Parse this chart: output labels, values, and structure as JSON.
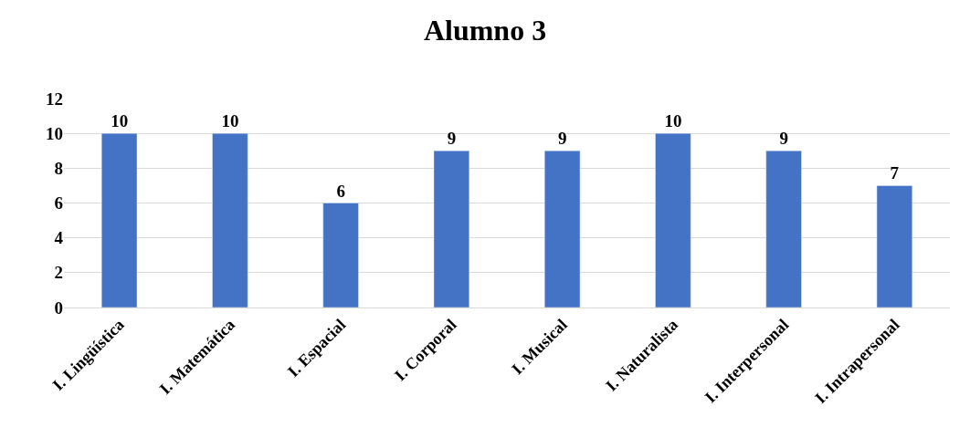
{
  "chart_data": {
    "type": "bar",
    "title": "Alumno 3",
    "categories": [
      "I. Lingüística",
      "I. Matemática",
      "I. Espacial",
      "I. Corporal",
      "I. Musical",
      "I. Naturalista",
      "I. Interpersonal",
      "I. Intrapersonal"
    ],
    "values": [
      10,
      10,
      6,
      9,
      9,
      10,
      9,
      7
    ],
    "color": "#4472c4",
    "ylim": [
      0,
      12
    ],
    "yticks": [
      0,
      2,
      4,
      6,
      8,
      10,
      12
    ],
    "grid": "y",
    "data_labels": true,
    "legend": false
  }
}
